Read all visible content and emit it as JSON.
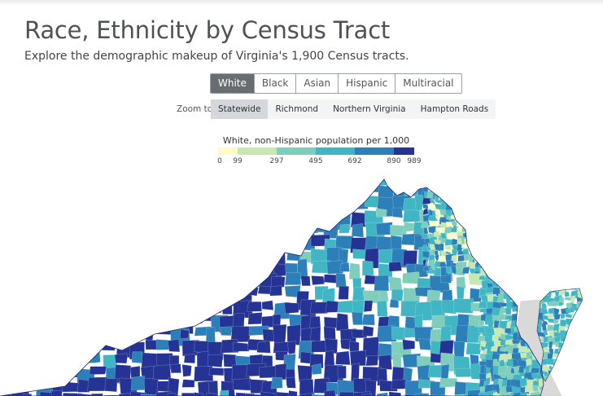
{
  "header": {
    "title": "Race, Ethnicity by Census Tract",
    "subtitle": "Explore the demographic makeup of Virginia's 1,900 Census tracts."
  },
  "race_tabs": [
    {
      "label": "White",
      "active": true
    },
    {
      "label": "Black",
      "active": false
    },
    {
      "label": "Asian",
      "active": false
    },
    {
      "label": "Hispanic",
      "active": false
    },
    {
      "label": "Multiracial",
      "active": false
    }
  ],
  "zoom": {
    "label": "Zoom to:",
    "options": [
      {
        "label": "Statewide",
        "active": true
      },
      {
        "label": "Richmond",
        "active": false
      },
      {
        "label": "Northern Virginia",
        "active": false
      },
      {
        "label": "Hampton Roads",
        "active": false
      }
    ]
  },
  "legend": {
    "title": "White, non-Hispanic population per 1,000",
    "breaks": [
      "0",
      "99",
      "297",
      "495",
      "692",
      "890",
      "989"
    ],
    "colors": [
      "#fdfdc4",
      "#c6e9b4",
      "#7fcdbb",
      "#40b6c4",
      "#2c7fb8",
      "#253494"
    ]
  },
  "map": {
    "region": "Virginia",
    "water_color": "#d9d9d9",
    "background": "#ffffff"
  }
}
